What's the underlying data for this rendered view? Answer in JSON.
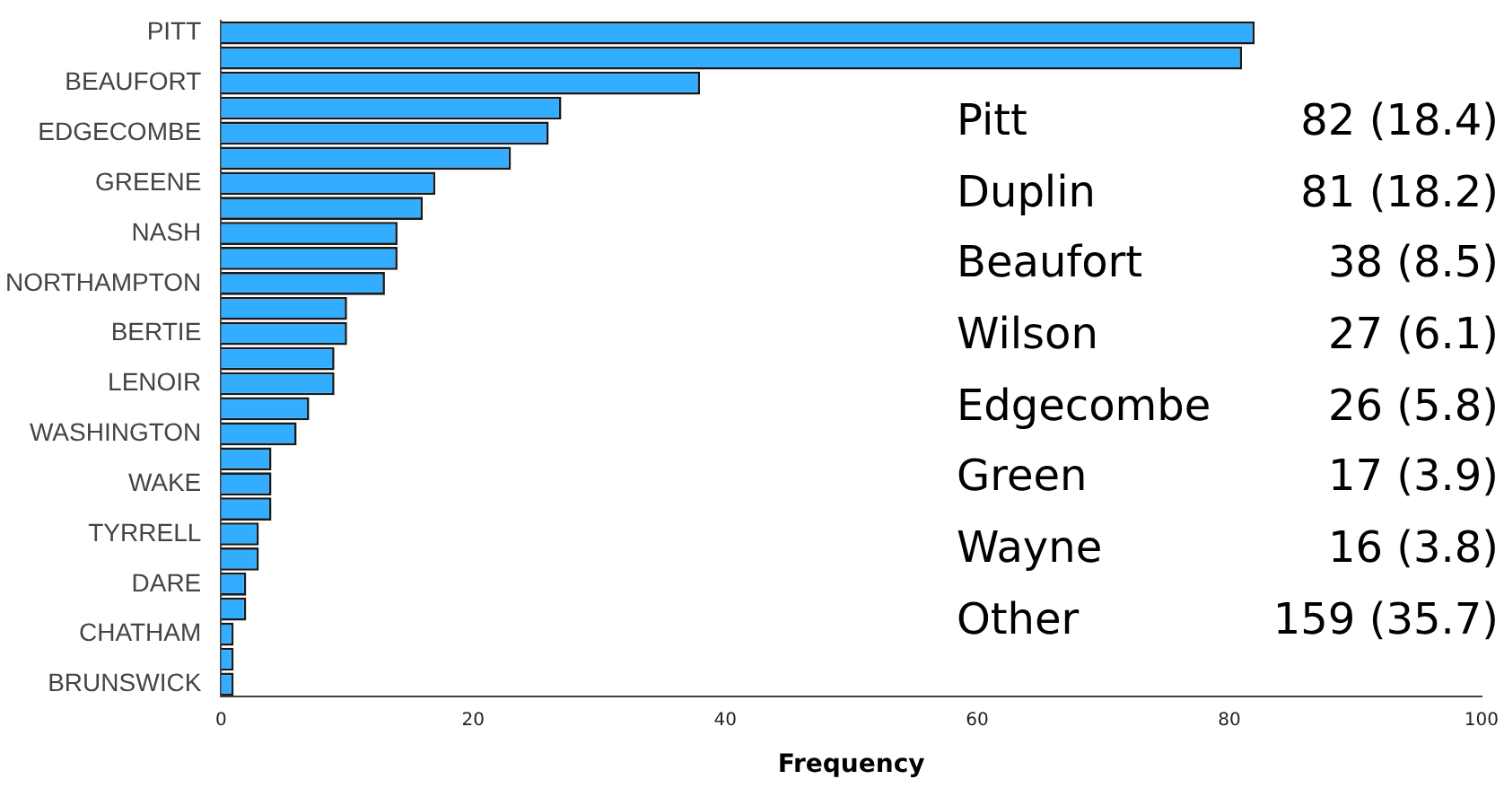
{
  "chart_data": {
    "type": "bar",
    "orientation": "horizontal",
    "xlabel": "Frequency",
    "color": "#33adff",
    "categories": [
      "PITT",
      null,
      "BEAUFORT",
      null,
      "EDGECOMBE",
      null,
      "GREENE",
      null,
      "NASH",
      null,
      "NORTHAMPTON",
      null,
      "BERTIE",
      null,
      "LENOIR",
      null,
      "WASHINGTON",
      null,
      "WAKE",
      null,
      "TYRRELL",
      null,
      "DARE",
      null,
      "CHATHAM",
      null,
      "BRUNSWICK"
    ],
    "values": [
      82,
      81,
      38,
      27,
      26,
      23,
      17,
      16,
      14,
      14,
      13,
      10,
      10,
      9,
      9,
      7,
      6,
      4,
      4,
      4,
      3,
      3,
      2,
      2,
      1,
      1,
      1
    ],
    "xlim": [
      0,
      100
    ],
    "xticks": [
      0,
      20,
      40,
      60,
      80,
      100
    ],
    "grid": false,
    "legend": false,
    "annotations": [
      "Pitt",
      "82 (18.4)",
      "Duplin",
      "81 (18.2)",
      "Beaufort",
      "38 (8.5)",
      "Wilson",
      "27 (6.1)",
      "Edgecombe",
      "26 (5.8)",
      "Green",
      "17 (3.9)",
      "Wayne",
      "16 (3.8)",
      "Other",
      "159 (35.7)"
    ]
  }
}
